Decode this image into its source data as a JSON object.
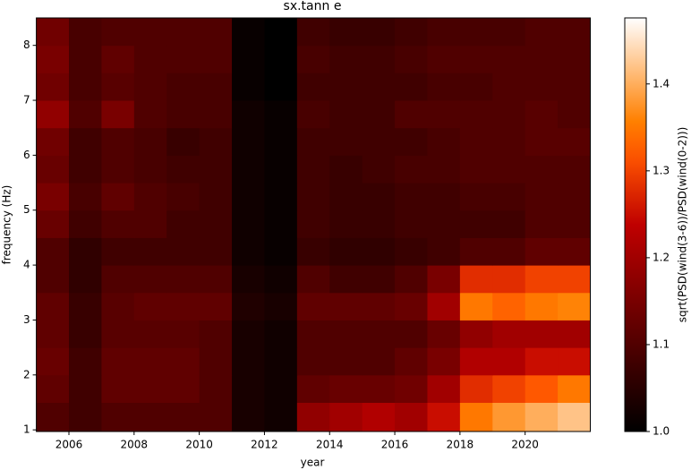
{
  "chart_data": {
    "type": "heatmap",
    "title": "sx.tann e",
    "xlabel": "year",
    "ylabel": "frequency (Hz)",
    "colorbar_label": "sqrt(PSD(wind(3-6))/PSD(wind(0-2)))",
    "colormap": "gist_heat",
    "x_edges": [
      2005,
      2006,
      2007,
      2008,
      2009,
      2010,
      2011,
      2012,
      2013,
      2014,
      2015,
      2016,
      2017,
      2018,
      2019,
      2020,
      2021,
      2022
    ],
    "y_edges": [
      0.97,
      1.5,
      2,
      2.5,
      3,
      3.5,
      4,
      4.5,
      5,
      5.5,
      6,
      6.5,
      7,
      7.5,
      8,
      8.5
    ],
    "z": [
      [
        1.1,
        1.08,
        1.1,
        1.1,
        1.1,
        1.1,
        1.03,
        1.02,
        1.18,
        1.2,
        1.22,
        1.2,
        1.25,
        1.35,
        1.38,
        1.4,
        1.42
      ],
      [
        1.12,
        1.08,
        1.12,
        1.12,
        1.12,
        1.1,
        1.03,
        1.02,
        1.12,
        1.13,
        1.13,
        1.14,
        1.2,
        1.28,
        1.3,
        1.32,
        1.35
      ],
      [
        1.13,
        1.08,
        1.12,
        1.12,
        1.12,
        1.1,
        1.03,
        1.02,
        1.1,
        1.1,
        1.1,
        1.12,
        1.15,
        1.22,
        1.22,
        1.25,
        1.25
      ],
      [
        1.12,
        1.07,
        1.11,
        1.11,
        1.11,
        1.1,
        1.03,
        1.02,
        1.1,
        1.1,
        1.1,
        1.1,
        1.13,
        1.18,
        1.2,
        1.2,
        1.2
      ],
      [
        1.12,
        1.07,
        1.11,
        1.12,
        1.12,
        1.12,
        1.04,
        1.03,
        1.12,
        1.12,
        1.12,
        1.13,
        1.2,
        1.35,
        1.33,
        1.35,
        1.36
      ],
      [
        1.1,
        1.06,
        1.1,
        1.1,
        1.1,
        1.1,
        1.03,
        1.02,
        1.1,
        1.08,
        1.08,
        1.1,
        1.15,
        1.28,
        1.28,
        1.3,
        1.3
      ],
      [
        1.1,
        1.06,
        1.08,
        1.08,
        1.08,
        1.08,
        1.02,
        1.01,
        1.07,
        1.06,
        1.06,
        1.07,
        1.08,
        1.1,
        1.1,
        1.12,
        1.12
      ],
      [
        1.13,
        1.08,
        1.1,
        1.1,
        1.08,
        1.08,
        1.02,
        1.01,
        1.08,
        1.07,
        1.07,
        1.08,
        1.08,
        1.08,
        1.08,
        1.1,
        1.1
      ],
      [
        1.15,
        1.09,
        1.12,
        1.1,
        1.09,
        1.08,
        1.02,
        1.01,
        1.08,
        1.07,
        1.07,
        1.08,
        1.08,
        1.09,
        1.09,
        1.1,
        1.1
      ],
      [
        1.13,
        1.08,
        1.1,
        1.09,
        1.08,
        1.08,
        1.02,
        1.01,
        1.08,
        1.07,
        1.08,
        1.09,
        1.09,
        1.1,
        1.1,
        1.1,
        1.1
      ],
      [
        1.14,
        1.08,
        1.1,
        1.09,
        1.07,
        1.08,
        1.02,
        1.01,
        1.08,
        1.08,
        1.08,
        1.08,
        1.09,
        1.1,
        1.1,
        1.11,
        1.11
      ],
      [
        1.18,
        1.1,
        1.15,
        1.1,
        1.09,
        1.09,
        1.02,
        1.01,
        1.09,
        1.08,
        1.08,
        1.1,
        1.1,
        1.1,
        1.1,
        1.11,
        1.1
      ],
      [
        1.14,
        1.09,
        1.11,
        1.1,
        1.09,
        1.09,
        1.01,
        1.0,
        1.08,
        1.08,
        1.08,
        1.08,
        1.09,
        1.09,
        1.1,
        1.1,
        1.1
      ],
      [
        1.15,
        1.09,
        1.12,
        1.1,
        1.1,
        1.1,
        1.01,
        1.0,
        1.09,
        1.08,
        1.08,
        1.09,
        1.1,
        1.1,
        1.1,
        1.1,
        1.1
      ],
      [
        1.14,
        1.09,
        1.1,
        1.1,
        1.1,
        1.1,
        1.01,
        1.0,
        1.08,
        1.07,
        1.07,
        1.08,
        1.09,
        1.09,
        1.09,
        1.1,
        1.1
      ]
    ],
    "xlim": [
      2005,
      2022
    ],
    "xticks": [
      2006,
      2008,
      2010,
      2012,
      2014,
      2016,
      2018,
      2020
    ],
    "ylim": [
      0.97,
      8.5
    ],
    "yticks": [
      1,
      2,
      3,
      4,
      5,
      6,
      7,
      8
    ],
    "clim": [
      1.0,
      1.476
    ],
    "cticks": [
      {
        "value": 1.0,
        "label": "1.0"
      },
      {
        "value": 1.1,
        "label": "1.1"
      },
      {
        "value": 1.2,
        "label": "1.2"
      },
      {
        "value": 1.3,
        "label": "1.3"
      },
      {
        "value": 1.4,
        "label": "1.4"
      }
    ]
  }
}
